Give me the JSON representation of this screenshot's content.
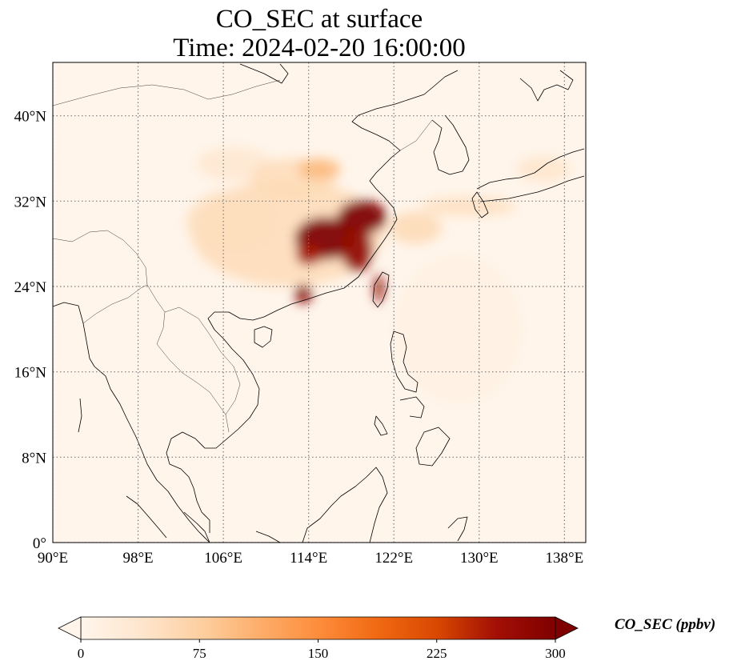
{
  "title": {
    "line1": "CO_SEC at surface",
    "line2": "Time: 2024-02-20 16:00:00"
  },
  "map": {
    "projection": "PlateCarree",
    "lon_range": [
      90,
      140
    ],
    "lat_range": [
      0,
      45
    ],
    "gridlines": "dotted",
    "lon_ticks": [
      {
        "value": 90,
        "label": "90°E"
      },
      {
        "value": 98,
        "label": "98°E"
      },
      {
        "value": 106,
        "label": "106°E"
      },
      {
        "value": 114,
        "label": "114°E"
      },
      {
        "value": 122,
        "label": "122°E"
      },
      {
        "value": 130,
        "label": "130°E"
      },
      {
        "value": 138,
        "label": "138°E"
      }
    ],
    "lat_ticks": [
      {
        "value": 0,
        "label": "0°"
      },
      {
        "value": 8,
        "label": "8°N"
      },
      {
        "value": 16,
        "label": "16°N"
      },
      {
        "value": 24,
        "label": "24°N"
      },
      {
        "value": 32,
        "label": "32°N"
      },
      {
        "value": 40,
        "label": "40°N"
      }
    ],
    "field_blobs": [
      {
        "name": "plume-broad-central-china",
        "lon": 112,
        "lat": 29,
        "rlon": 9,
        "rlat": 5,
        "value": 55
      },
      {
        "name": "plume-west-sichuan",
        "lon": 107,
        "lat": 30,
        "rlon": 4.5,
        "rlat": 3,
        "value": 50
      },
      {
        "name": "plume-northwest-streak",
        "lon": 107,
        "lat": 35.5,
        "rlon": 3.5,
        "rlat": 1.6,
        "value": 35
      },
      {
        "name": "plume-north-china",
        "lon": 112.5,
        "lat": 34,
        "rlon": 4,
        "rlat": 2,
        "value": 55
      },
      {
        "name": "plume-north-yellow-river",
        "lon": 115,
        "lat": 35,
        "rlon": 2,
        "rlat": 1,
        "value": 100
      },
      {
        "name": "hotspot-yangtze-river-delta",
        "lon": 119,
        "lat": 30.5,
        "rlon": 2.3,
        "rlat": 1.6,
        "value": 300
      },
      {
        "name": "hotspot-hubei-jiangxi",
        "lon": 115.5,
        "lat": 28.5,
        "rlon": 2.8,
        "rlat": 2.0,
        "value": 300
      },
      {
        "name": "hotspot-zhejiang-fujian",
        "lon": 118.5,
        "lat": 27.5,
        "rlon": 1.5,
        "rlat": 2.1,
        "value": 280
      },
      {
        "name": "hotspot-hunan",
        "lon": 114,
        "lat": 27,
        "rlon": 1.2,
        "rlat": 1.0,
        "value": 260
      },
      {
        "name": "hotspot-guangdong",
        "lon": 113.5,
        "lat": 23.3,
        "rlon": 0.8,
        "rlat": 0.9,
        "value": 290
      },
      {
        "name": "hotspot-taiwan-west",
        "lon": 120.6,
        "lat": 23.8,
        "rlon": 0.45,
        "rlat": 1.3,
        "value": 280
      },
      {
        "name": "plume-east-china-sea",
        "lon": 124,
        "lat": 29.5,
        "rlon": 2.5,
        "rlat": 1.5,
        "value": 60
      },
      {
        "name": "plume-korea-japan-band",
        "lon": 129,
        "lat": 31.5,
        "rlon": 4.5,
        "rlat": 0.9,
        "value": 50
      },
      {
        "name": "plume-japan-east",
        "lon": 136,
        "lat": 35,
        "rlon": 2.5,
        "rlat": 1.2,
        "value": 40
      },
      {
        "name": "haze-western-pacific",
        "lon": 128,
        "lat": 20,
        "rlon": 6,
        "rlat": 7,
        "value": 10
      }
    ]
  },
  "colorbar": {
    "label": "CO_SEC (ppbv)",
    "min": 0,
    "max": 300,
    "ticks": [
      {
        "value": 0,
        "label": "0"
      },
      {
        "value": 75,
        "label": "75"
      },
      {
        "value": 150,
        "label": "150"
      },
      {
        "value": 225,
        "label": "225"
      },
      {
        "value": 300,
        "label": "300"
      }
    ],
    "colormap": [
      "#fff5eb",
      "#fee6ce",
      "#fdd0a2",
      "#fdae6b",
      "#fd8d3c",
      "#f16913",
      "#d94801",
      "#a30f05",
      "#7f0000"
    ],
    "extend": "both"
  }
}
